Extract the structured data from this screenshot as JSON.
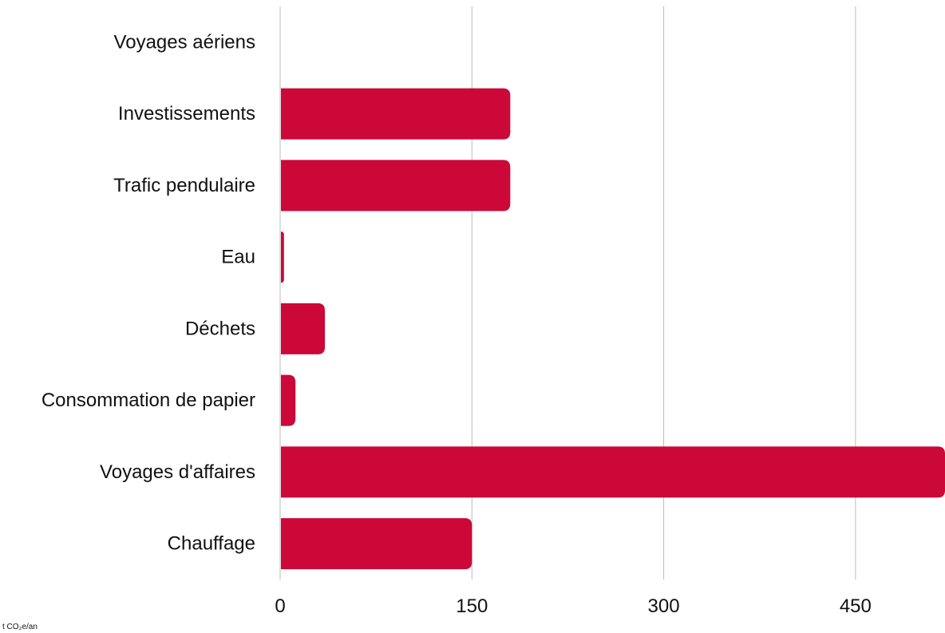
{
  "chart_data": {
    "type": "bar",
    "orientation": "horizontal",
    "categories": [
      "Voyages aériens",
      "Investissements",
      "Trafic pendulaire",
      "Eau",
      "Déchets",
      "Consommation de papier",
      "Voyages d'affaires",
      "Chauffage"
    ],
    "values": [
      0,
      180,
      180,
      3,
      35,
      12,
      520,
      150
    ],
    "xticks": [
      "0",
      "150",
      "300",
      "450"
    ],
    "xlim": [
      0,
      520
    ],
    "grid": true,
    "bar_color": "#cc0839",
    "grid_color": "#bbbbbb",
    "unit_label": "t CO₂e/an"
  }
}
